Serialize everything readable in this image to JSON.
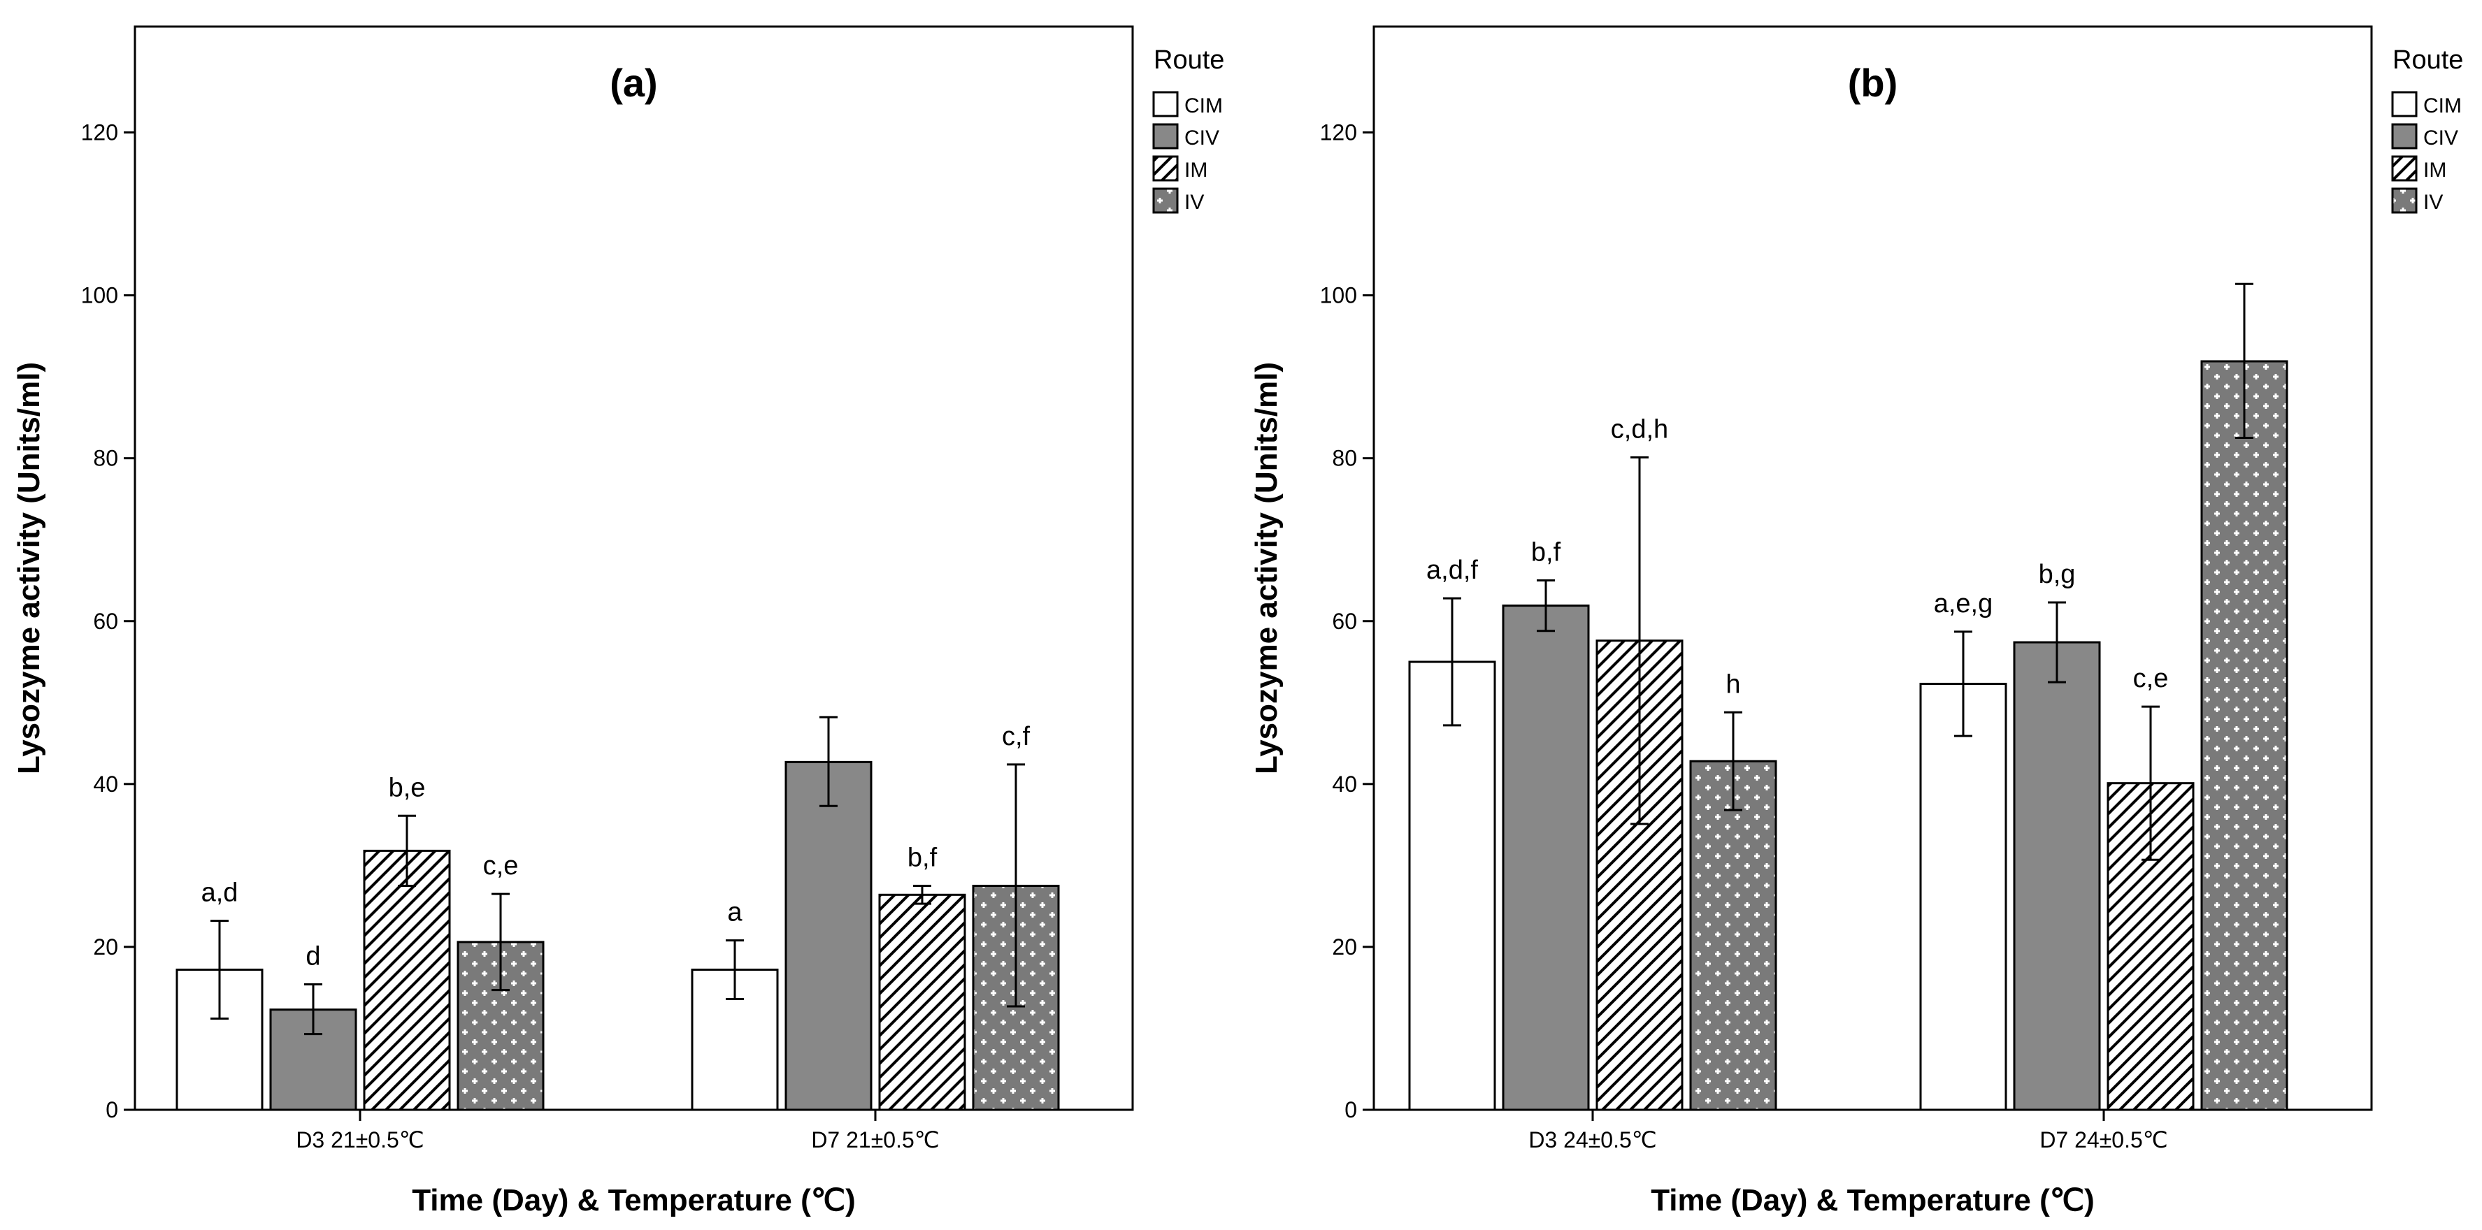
{
  "colors": {
    "CIM": "#ffffff",
    "CIV": "#888888",
    "IM": "#ffffff",
    "IV": "#777777",
    "stroke": "#000000"
  },
  "chart_data": [
    {
      "type": "bar",
      "title": "(a)",
      "xlabel": "Time (Day) & Temperature (℃)",
      "ylabel": "Lysozyme activity (Units/ml)",
      "ylim": [
        0,
        133
      ],
      "yticks": [
        0,
        20,
        40,
        60,
        80,
        100,
        120
      ],
      "grid": false,
      "legend": {
        "title": "Route",
        "position": "right",
        "entries": [
          "CIM",
          "CIV",
          "IM",
          "IV"
        ]
      },
      "categories": [
        "D3 21±0.5℃",
        "D7 21±0.5℃"
      ],
      "series": [
        {
          "name": "CIM",
          "values": [
            17.2,
            17.2
          ],
          "err_low": [
            11.2,
            13.6
          ],
          "err_high": [
            23.2,
            20.8
          ],
          "labels": [
            "a,d",
            "a"
          ]
        },
        {
          "name": "CIV",
          "values": [
            12.3,
            42.7
          ],
          "err_low": [
            9.3,
            37.3
          ],
          "err_high": [
            15.4,
            48.2
          ],
          "labels": [
            "d",
            ""
          ]
        },
        {
          "name": "IM",
          "values": [
            31.8,
            26.4
          ],
          "err_low": [
            27.5,
            25.3
          ],
          "err_high": [
            36.1,
            27.5
          ],
          "labels": [
            "b,e",
            "b,f"
          ]
        },
        {
          "name": "IV",
          "values": [
            20.6,
            27.5
          ],
          "err_low": [
            14.7,
            12.7
          ],
          "err_high": [
            26.5,
            42.4
          ],
          "labels": [
            "c,e",
            "c,f"
          ]
        }
      ]
    },
    {
      "type": "bar",
      "title": "(b)",
      "xlabel": "Time (Day) & Temperature (℃)",
      "ylabel": "Lysozyme activity (Units/ml)",
      "ylim": [
        0,
        133
      ],
      "yticks": [
        0,
        20,
        40,
        60,
        80,
        100,
        120
      ],
      "grid": false,
      "legend": {
        "title": "Route",
        "position": "right",
        "entries": [
          "CIM",
          "CIV",
          "IM",
          "IV"
        ]
      },
      "categories": [
        "D3 24±0.5℃",
        "D7 24±0.5℃"
      ],
      "series": [
        {
          "name": "CIM",
          "values": [
            55.0,
            52.3
          ],
          "err_low": [
            47.2,
            45.9
          ],
          "err_high": [
            62.8,
            58.7
          ],
          "labels": [
            "a,d,f",
            "a,e,g"
          ]
        },
        {
          "name": "CIV",
          "values": [
            61.9,
            57.4
          ],
          "err_low": [
            58.8,
            52.5
          ],
          "err_high": [
            65.0,
            62.3
          ],
          "labels": [
            "b,f",
            "b,g"
          ]
        },
        {
          "name": "IM",
          "values": [
            57.6,
            40.1
          ],
          "err_low": [
            35.1,
            30.7
          ],
          "err_high": [
            80.1,
            49.5
          ],
          "labels": [
            "c,d,h",
            "c,e"
          ]
        },
        {
          "name": "IV",
          "values": [
            42.8,
            91.9
          ],
          "err_low": [
            36.8,
            82.5
          ],
          "err_high": [
            48.8,
            101.4
          ],
          "labels": [
            "h",
            ""
          ]
        }
      ]
    }
  ]
}
